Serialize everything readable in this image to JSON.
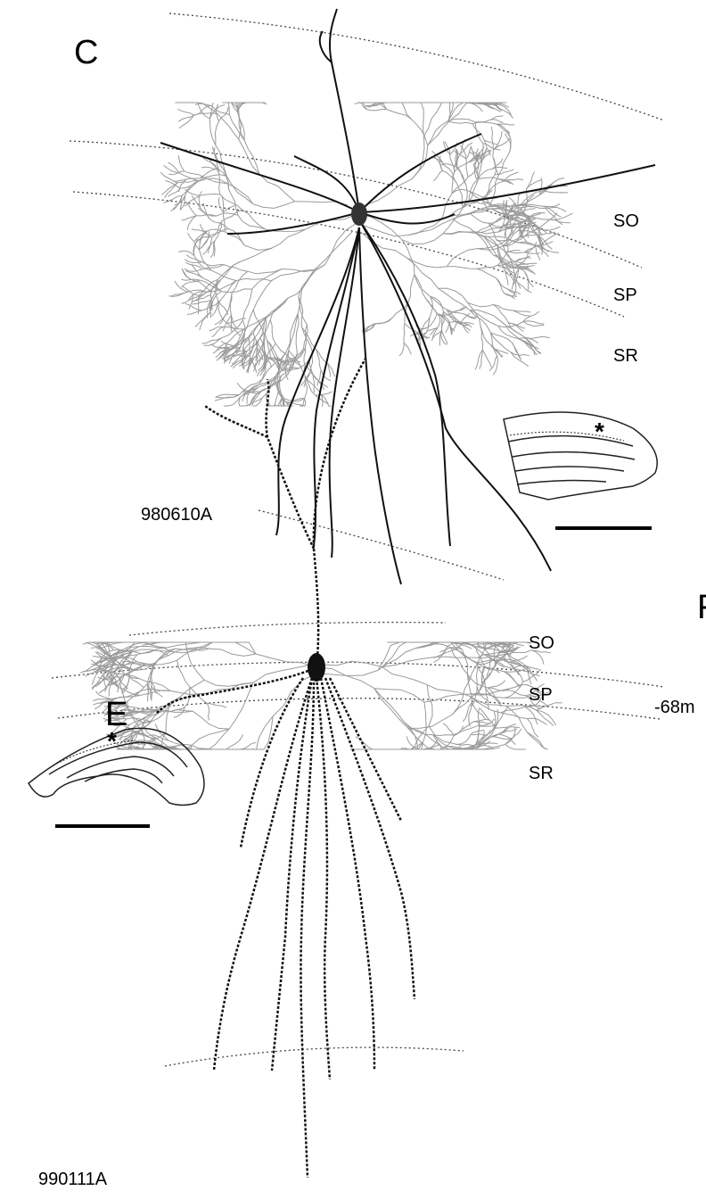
{
  "panels": [
    {
      "letter": "C",
      "cell_id": "980610A",
      "layers": [
        "SO",
        "SP",
        "SR"
      ]
    },
    {
      "letter": "E",
      "cell_id": "990111A",
      "layers": [
        "SO",
        "SP",
        "SR"
      ]
    }
  ],
  "edge_fragments": {
    "right_letter": "F",
    "voltage_text": "-68m"
  },
  "colors": {
    "dendrite": "#111111",
    "axon": "#9a9a9a",
    "boundary": "#444444"
  }
}
